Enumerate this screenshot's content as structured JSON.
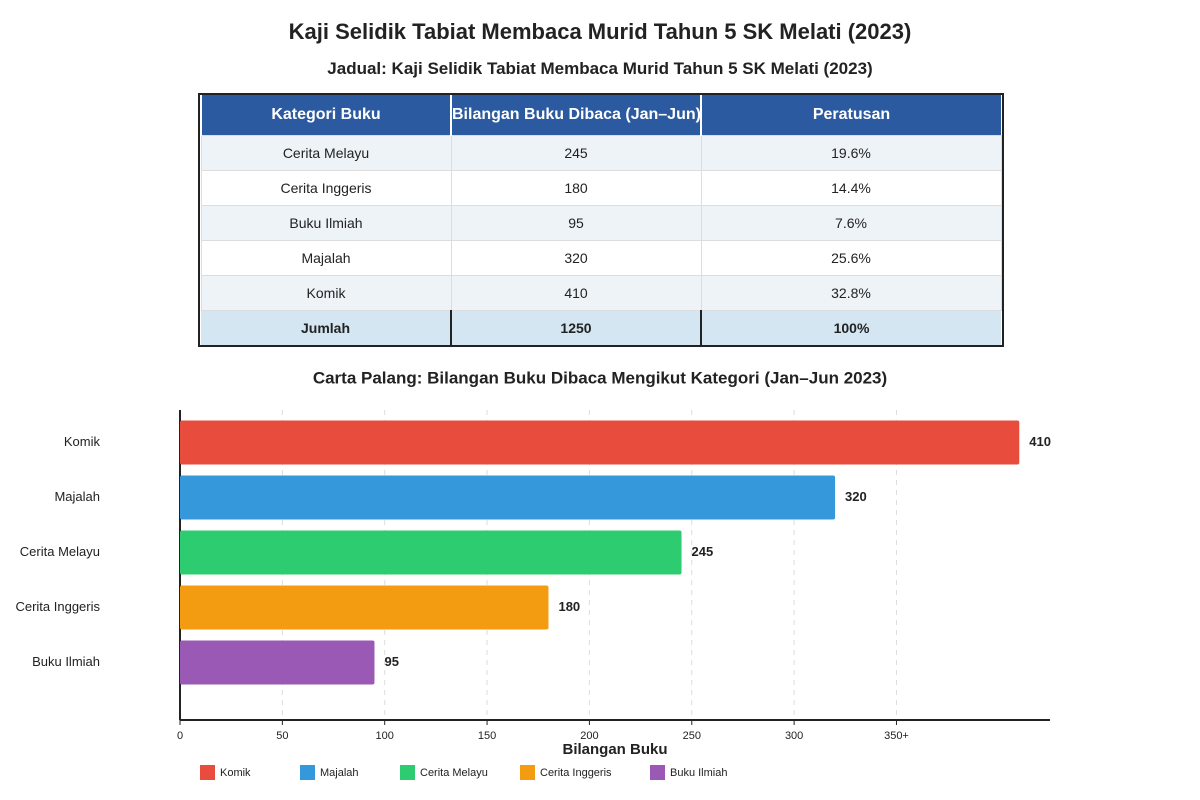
{
  "title": "Kaji Selidik Tabiat Membaca Murid Tahun 5 SK Melati (2023)",
  "table": {
    "title": "Jadual: Kaji Selidik Tabiat Membaca Murid Tahun 5 SK Melati (2023)",
    "columns": [
      "Kategori Buku",
      "Bilangan Buku Dibaca (Jan–Jun)",
      "Peratusan"
    ],
    "rows": [
      [
        "Cerita Melayu",
        "245",
        "19.6%"
      ],
      [
        "Cerita Inggeris",
        "180",
        "14.4%"
      ],
      [
        "Buku Ilmiah",
        "95",
        "7.6%"
      ],
      [
        "Majalah",
        "320",
        "25.6%"
      ],
      [
        "Komik",
        "410",
        "32.8%"
      ]
    ],
    "total": [
      "Jumlah",
      "1250",
      "100%"
    ]
  },
  "chart_data": {
    "type": "bar",
    "orientation": "horizontal",
    "title": "Carta Palang: Bilangan Buku Dibaca Mengikut Kategori (Jan–Jun 2023)",
    "x_label": "Bilangan Buku",
    "categories": [
      "Komik",
      "Majalah",
      "Cerita Melayu",
      "Cerita Inggeris",
      "Buku Ilmiah"
    ],
    "values": [
      410,
      320,
      245,
      180,
      95
    ],
    "colors": [
      "#e74c3c",
      "#3498db",
      "#2ecc71",
      "#f39c12",
      "#9b59b6"
    ],
    "xlim": [
      0,
      425
    ],
    "xticks": [
      0,
      50,
      100,
      150,
      200,
      250,
      300,
      {
        "value": 350,
        "label": "350+"
      }
    ],
    "grid": true,
    "legend": "bottom-left"
  }
}
